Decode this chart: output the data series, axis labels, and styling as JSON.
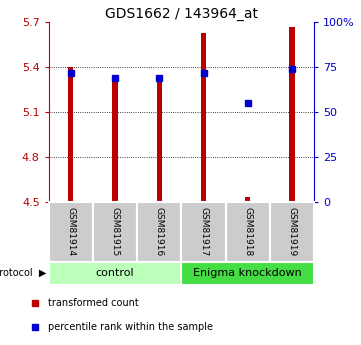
{
  "title": "GDS1662 / 143964_at",
  "samples": [
    "GSM81914",
    "GSM81915",
    "GSM81916",
    "GSM81917",
    "GSM81918",
    "GSM81919"
  ],
  "red_values": [
    5.4,
    5.33,
    5.33,
    5.63,
    4.53,
    5.67
  ],
  "ylim_left": [
    4.5,
    5.7
  ],
  "ylim_right": [
    0,
    100
  ],
  "yticks_left": [
    4.5,
    4.8,
    5.1,
    5.4,
    5.7
  ],
  "yticks_right": [
    0,
    25,
    50,
    75,
    100
  ],
  "ytick_labels_right": [
    "0",
    "25",
    "50",
    "75",
    "100%"
  ],
  "bar_bottom": 4.5,
  "bar_width": 0.12,
  "red_color": "#bb0000",
  "blue_color": "#0000cc",
  "control_label": "control",
  "knockdown_label": "Enigma knockdown",
  "protocol_label": "protocol",
  "legend_red": "transformed count",
  "legend_blue": "percentile rank within the sample",
  "blue_percentiles": [
    72,
    69,
    69,
    72,
    55,
    74
  ],
  "control_bg": "#bbffbb",
  "knockdown_bg": "#44dd44",
  "sample_box_bg": "#cccccc",
  "sample_box_edge": "#888888"
}
